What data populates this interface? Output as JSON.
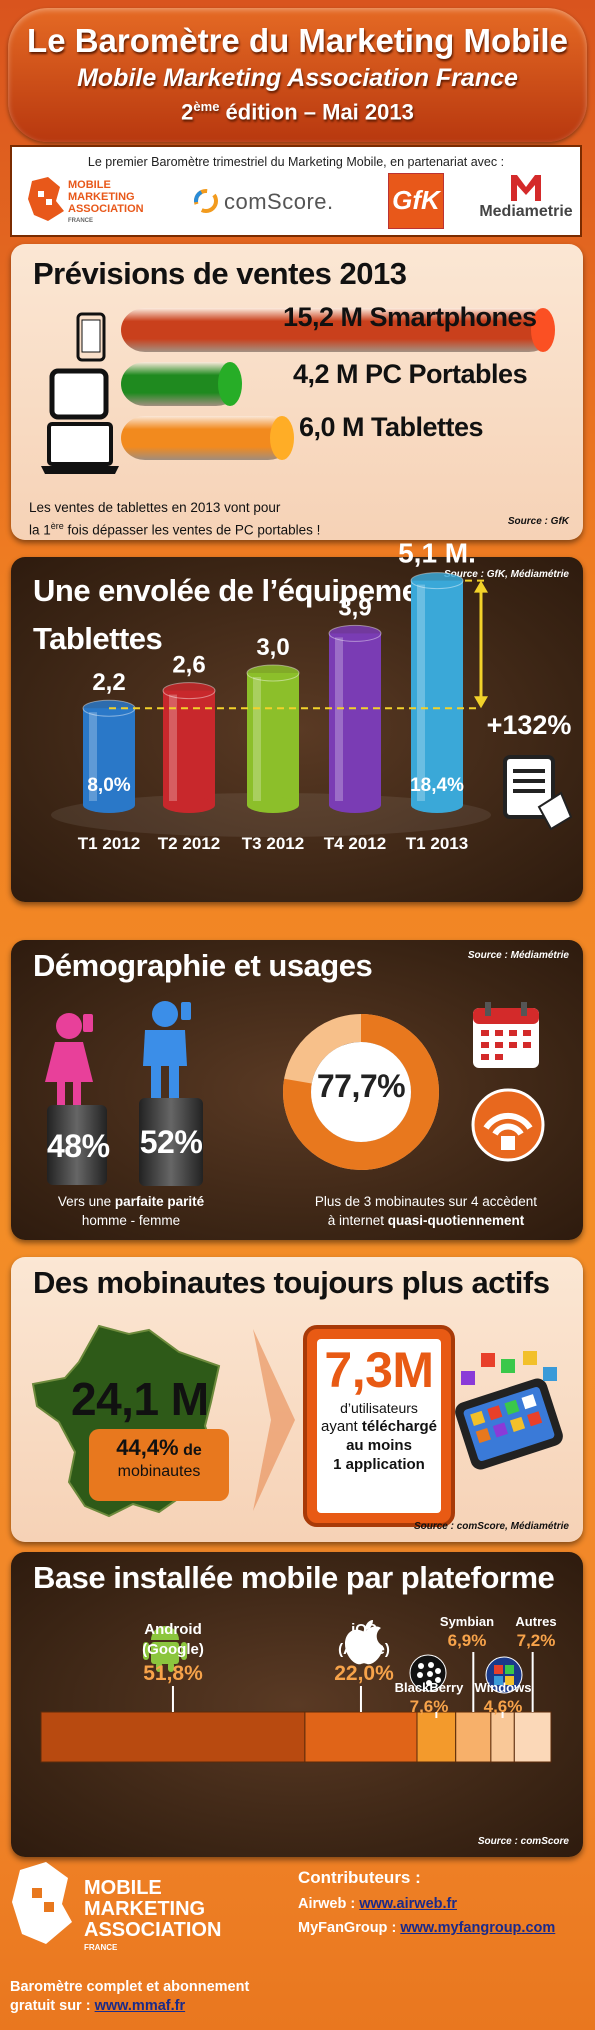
{
  "header": {
    "title": "Le Baromètre du Marketing Mobile",
    "subtitle": "Mobile Marketing Association France",
    "edition_num": "2",
    "edition_sup": "ème",
    "edition_rest": " édition – Mai 2013"
  },
  "partners": {
    "caption": "Le premier Baromètre trimestriel du Marketing Mobile,  en partenariat avec :",
    "mma": [
      "MOBILE",
      "MARKETING",
      "ASSOCIATION",
      "FRANCE"
    ],
    "comscore": "comScore",
    "comscore_reg": ".",
    "gfk": "GfK",
    "mediametrie": "Mediametrie"
  },
  "sales": {
    "title": "Prévisions de ventes 2013",
    "source": "Source : GfK",
    "note_line1": "Les ventes de tablettes en 2013 vont pour",
    "note_line2_pre": "la 1",
    "note_line2_sup": "ère",
    "note_line2_post": " fois dépasser les ventes de PC portables !",
    "items": [
      {
        "label": "15,2 M  Smartphones",
        "value": 15.2,
        "color": "#c9401c",
        "icon": "smartphone-icon"
      },
      {
        "label": "4,2 M  PC Portables",
        "value": 4.2,
        "color": "#1f8a1f",
        "icon": "tablet-icon"
      },
      {
        "label": "6,0 M  Tablettes",
        "value": 6.0,
        "color": "#f28a1e",
        "icon": "laptop-icon"
      }
    ]
  },
  "chart_data": {
    "type": "bar",
    "title": "Une envolée de l’équipement Tablettes",
    "source": "Source : GfK, Médiamétrie",
    "categories": [
      "T1 2012",
      "T2 2012",
      "T3 2012",
      "T4 2012",
      "T1 2013"
    ],
    "values": [
      2.2,
      2.6,
      3.0,
      3.9,
      5.1
    ],
    "value_labels": [
      "2,2",
      "2,6",
      "3,0",
      "3,9",
      "5,1 M."
    ],
    "inner_labels": [
      "8,0%",
      "",
      "",
      "",
      "18,4%"
    ],
    "colors": [
      "#2a78c8",
      "#c8282c",
      "#8cbf2a",
      "#7a3cb4",
      "#3aa8d8"
    ],
    "growth_label": "+132%"
  },
  "demo": {
    "title": "Démographie et usages",
    "source": "Source : Médiamétrie",
    "female_pct": "48%",
    "male_pct": "52%",
    "left_line1_pre": "Vers une ",
    "left_line1_bold": "parfaite parité",
    "left_line2": "homme - femme",
    "donut_value": "77,7%",
    "donut_fraction": 0.777,
    "right_line1": "Plus de 3 mobinautes sur 4 accèdent",
    "right_line2_pre": "à internet ",
    "right_line2_bold": "quasi-quotiennement"
  },
  "actifs": {
    "title": "Des mobinautes toujours plus actifs",
    "source": "Source : comScore, Médiamétrie",
    "france_value": "24,1 M",
    "pct": "44,4%",
    "pct_suffix": " de",
    "pct_line2": "mobinautes",
    "users_value": "7,3M",
    "users_l1": "d’utilisateurs",
    "users_l2_pre": "ayant ",
    "users_l2_bold": "téléchargé",
    "users_l3": "au moins",
    "users_l4": "1 application"
  },
  "base": {
    "title": "Base installée mobile par plateforme",
    "source": "Source : comScore",
    "platforms": [
      {
        "name": "Android",
        "sub": "(Google)",
        "pct": "51,8%",
        "value": 51.8,
        "color": "#b84a10",
        "icon": "android-icon"
      },
      {
        "name": "iOS",
        "sub": "(Apple)",
        "pct": "22,0%",
        "value": 22.0,
        "color": "#e06418",
        "icon": "apple-icon"
      },
      {
        "name": "BlackBerry",
        "sub": "",
        "pct": "7,6%",
        "value": 7.6,
        "color": "#f39a2c",
        "icon": "blackberry-icon"
      },
      {
        "name": "Symbian",
        "sub": "",
        "pct": "6,9%",
        "value": 6.9,
        "color": "#f7b06a",
        "icon": ""
      },
      {
        "name": "Windows",
        "sub": "",
        "pct": "4,6%",
        "value": 4.6,
        "color": "#f9c898",
        "icon": "windows-icon"
      },
      {
        "name": "Autres",
        "sub": "",
        "pct": "7,2%",
        "value": 7.2,
        "color": "#fbd8b8",
        "icon": ""
      }
    ]
  },
  "footer": {
    "mma": [
      "MOBILE",
      "MARKETING",
      "ASSOCIATION",
      "FRANCE"
    ],
    "contrib_title": "Contributeurs :",
    "c1_label": "Airweb : ",
    "c1_link": "www.airweb.fr",
    "c2_label": "MyFanGroup  : ",
    "c2_link": "www.myfangroup.com",
    "baro_l1": "Baromètre complet et abonnement",
    "baro_l2": "gratuit sur : ",
    "baro_link": "www.mmaf.fr"
  }
}
